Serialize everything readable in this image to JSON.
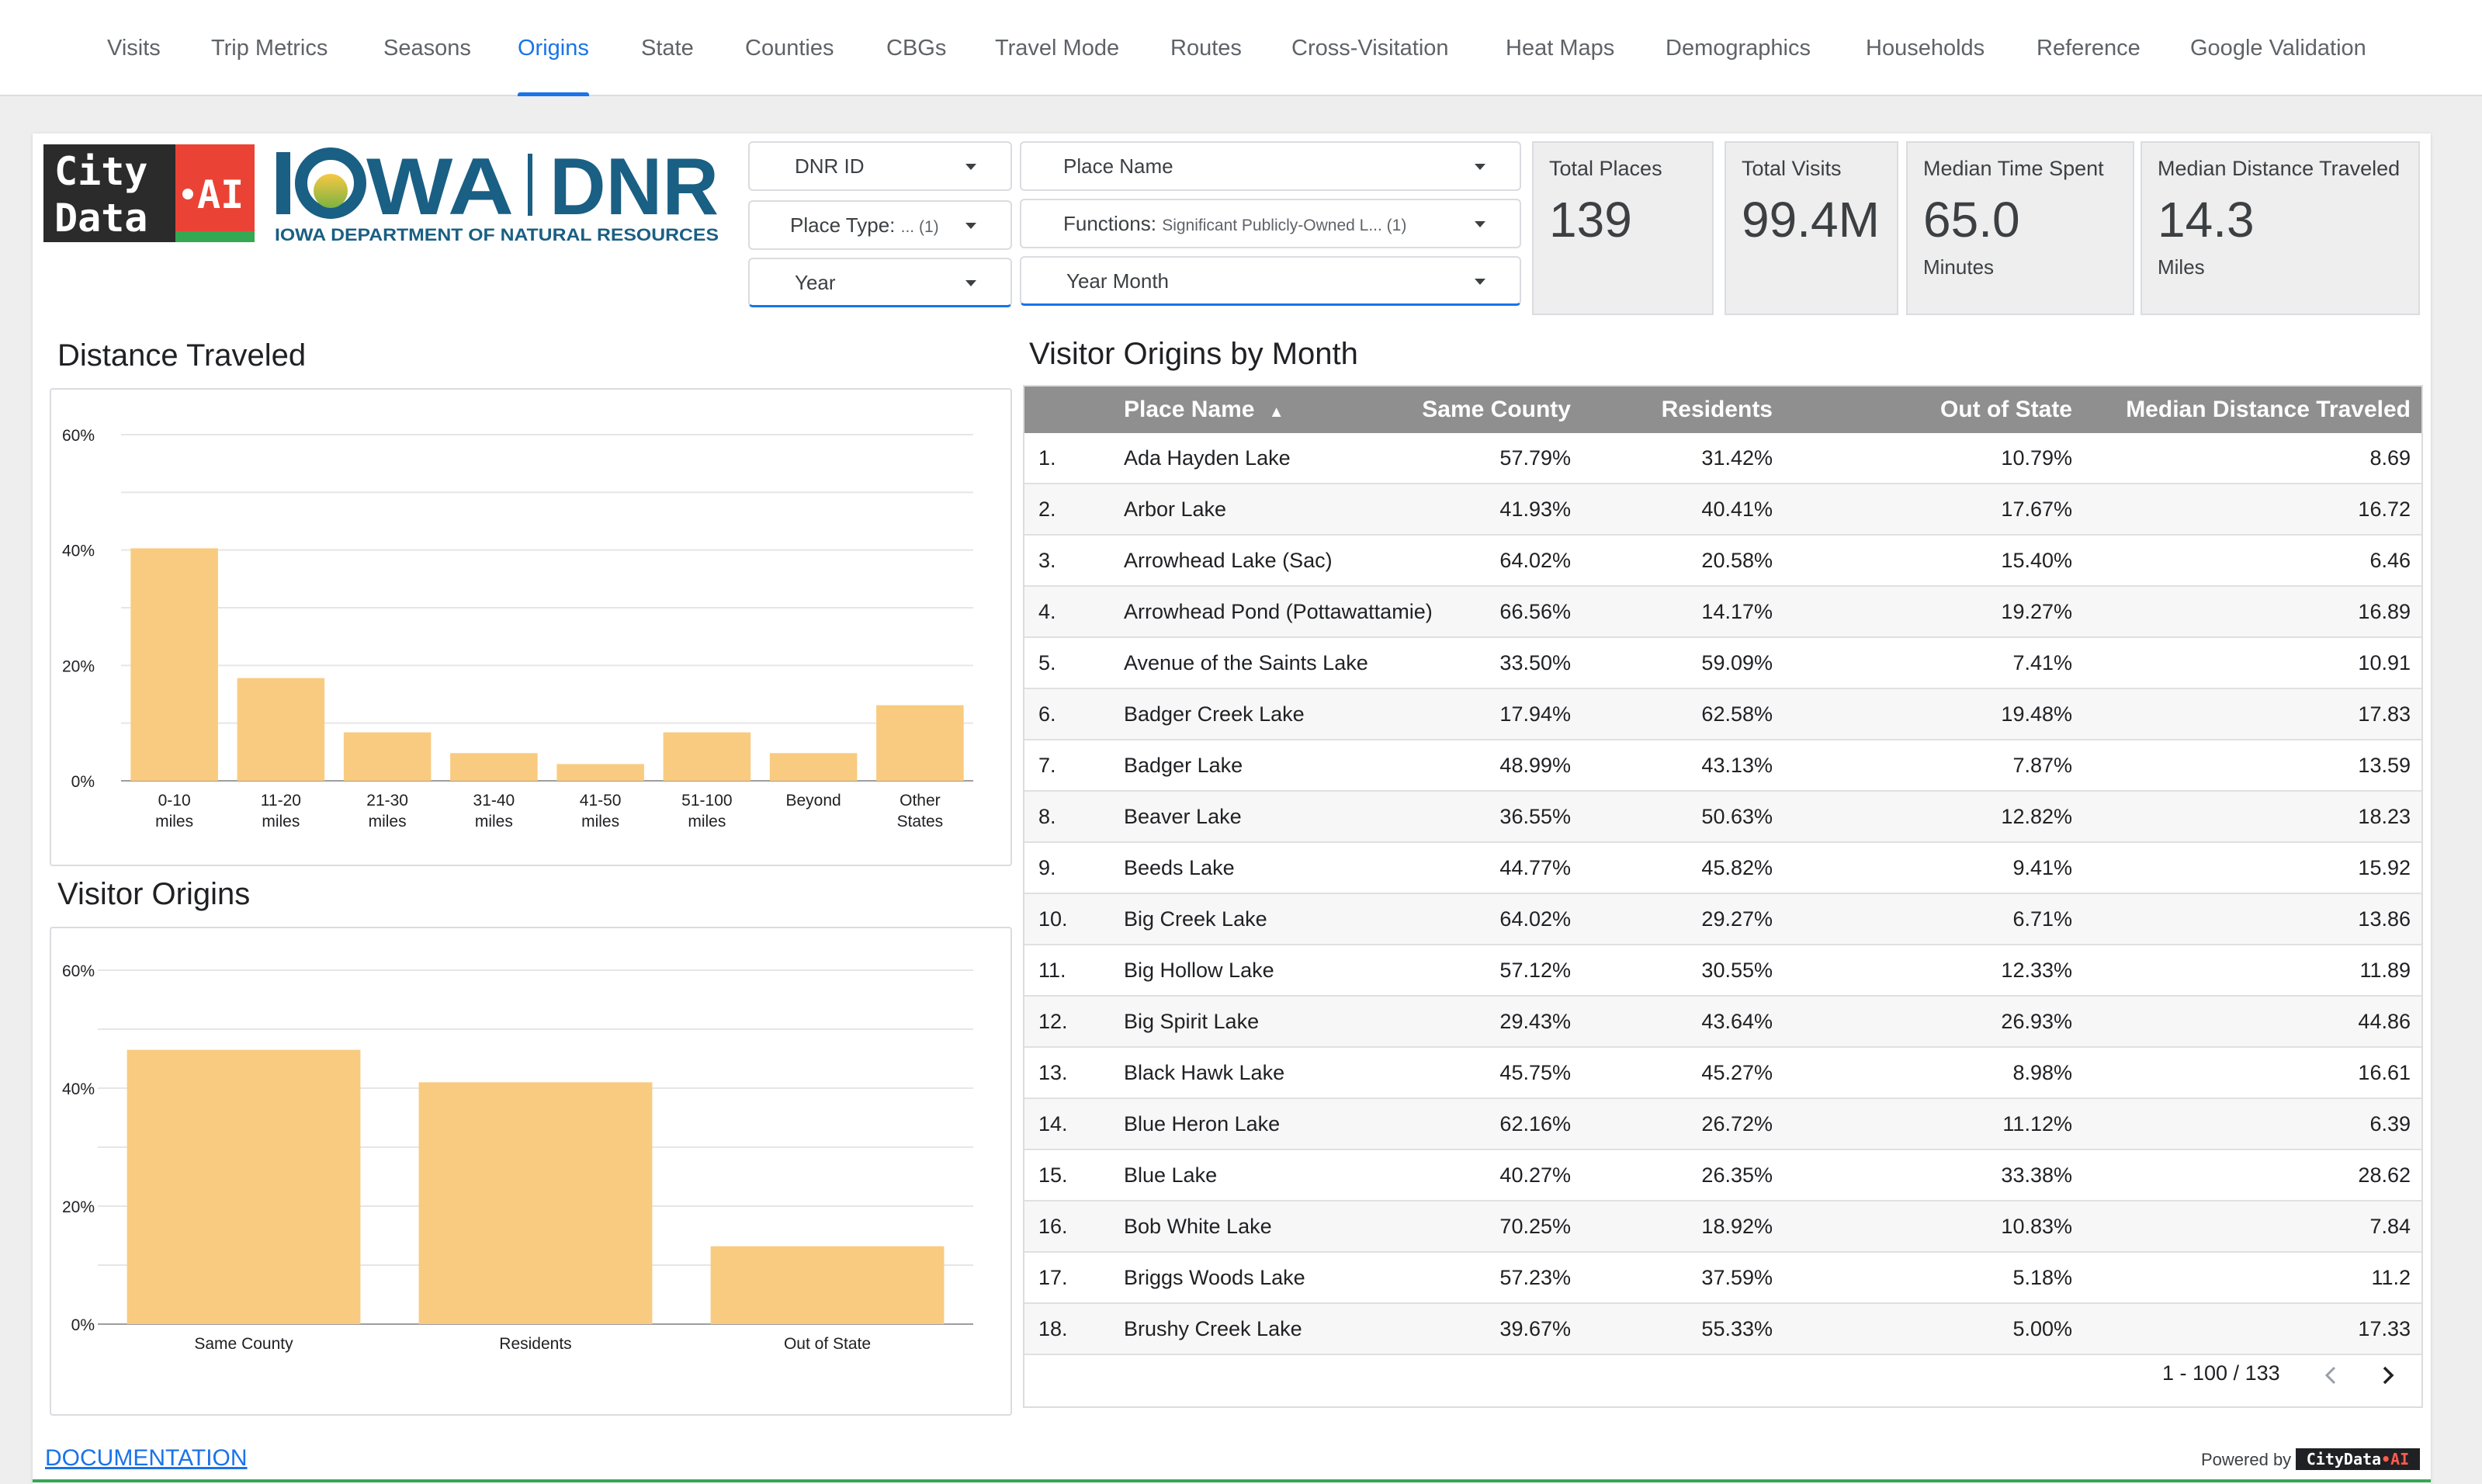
{
  "nav": {
    "tabs": [
      {
        "label": "Visits",
        "active": false
      },
      {
        "label": "Trip Metrics",
        "active": false
      },
      {
        "label": "Seasons",
        "active": false
      },
      {
        "label": "Origins",
        "active": true
      },
      {
        "label": "State",
        "active": false
      },
      {
        "label": "Counties",
        "active": false
      },
      {
        "label": "CBGs",
        "active": false
      },
      {
        "label": "Travel Mode",
        "active": false
      },
      {
        "label": "Routes",
        "active": false
      },
      {
        "label": "Cross-Visitation",
        "active": false
      },
      {
        "label": "Heat Maps",
        "active": false
      },
      {
        "label": "Demographics",
        "active": false
      },
      {
        "label": "Households",
        "active": false
      },
      {
        "label": "Reference",
        "active": false
      },
      {
        "label": "Google Validation",
        "active": false
      }
    ],
    "active_color": "#1a73e8"
  },
  "logos": {
    "citydata_line1": "City",
    "citydata_line2": "Data",
    "citydata_ai": "AI",
    "dnr_left": "IOWA",
    "dnr_right": "DNR",
    "dnr_sub": "IOWA DEPARTMENT OF NATURAL RESOURCES"
  },
  "filters": {
    "dnr_id": "DNR ID",
    "place_name": "Place Name",
    "place_type_label": "Place Type:",
    "place_type_value": "... (1)",
    "functions_label": "Functions:",
    "functions_value": "Significant Publicly-Owned L...  (1)",
    "year": "Year",
    "year_month": "Year Month"
  },
  "kpis": [
    {
      "label": "Total Places",
      "value": "139",
      "unit": ""
    },
    {
      "label": "Total Visits",
      "value": "99.4M",
      "unit": ""
    },
    {
      "label": "Median Time Spent",
      "value": "65.0",
      "unit": "Minutes"
    },
    {
      "label": "Median Distance Traveled",
      "value": "14.3",
      "unit": "Miles"
    }
  ],
  "chart_data": [
    {
      "type": "bar",
      "title": "Distance Traveled",
      "categories": [
        "0-10 miles",
        "11-20 miles",
        "21-30 miles",
        "31-40 miles",
        "41-50 miles",
        "51-100 miles",
        "Beyond",
        "Other States"
      ],
      "values": [
        40.3,
        17.8,
        8.4,
        4.8,
        2.9,
        8.4,
        4.8,
        13.1
      ],
      "yticks": [
        "0%",
        "20%",
        "40%",
        "60%"
      ],
      "ylim": [
        0,
        60
      ],
      "bar_color": "#f9cb80",
      "grid": true
    },
    {
      "type": "bar",
      "title": "Visitor Origins",
      "categories": [
        "Same County",
        "Residents",
        "Out of State"
      ],
      "values": [
        46.5,
        41.0,
        13.2
      ],
      "yticks": [
        "0%",
        "20%",
        "40%",
        "60%"
      ],
      "ylim": [
        0,
        60
      ],
      "bar_color": "#f9cb80",
      "grid": true
    }
  ],
  "table": {
    "title": "Visitor Origins by Month",
    "columns": [
      "Place Name",
      "Same County",
      "Residents",
      "Out of State",
      "Median Distance Traveled"
    ],
    "sort_indicator": "▲",
    "rows": [
      {
        "idx": "1.",
        "name": "Ada Hayden Lake",
        "same": "57.79%",
        "res": "31.42%",
        "oos": "10.79%",
        "mdt": "8.69"
      },
      {
        "idx": "2.",
        "name": "Arbor Lake",
        "same": "41.93%",
        "res": "40.41%",
        "oos": "17.67%",
        "mdt": "16.72"
      },
      {
        "idx": "3.",
        "name": "Arrowhead Lake (Sac)",
        "same": "64.02%",
        "res": "20.58%",
        "oos": "15.40%",
        "mdt": "6.46"
      },
      {
        "idx": "4.",
        "name": "Arrowhead Pond (Pottawattamie)",
        "same": "66.56%",
        "res": "14.17%",
        "oos": "19.27%",
        "mdt": "16.89"
      },
      {
        "idx": "5.",
        "name": "Avenue of the Saints Lake",
        "same": "33.50%",
        "res": "59.09%",
        "oos": "7.41%",
        "mdt": "10.91"
      },
      {
        "idx": "6.",
        "name": "Badger Creek Lake",
        "same": "17.94%",
        "res": "62.58%",
        "oos": "19.48%",
        "mdt": "17.83"
      },
      {
        "idx": "7.",
        "name": "Badger Lake",
        "same": "48.99%",
        "res": "43.13%",
        "oos": "7.87%",
        "mdt": "13.59"
      },
      {
        "idx": "8.",
        "name": "Beaver Lake",
        "same": "36.55%",
        "res": "50.63%",
        "oos": "12.82%",
        "mdt": "18.23"
      },
      {
        "idx": "9.",
        "name": "Beeds Lake",
        "same": "44.77%",
        "res": "45.82%",
        "oos": "9.41%",
        "mdt": "15.92"
      },
      {
        "idx": "10.",
        "name": "Big Creek Lake",
        "same": "64.02%",
        "res": "29.27%",
        "oos": "6.71%",
        "mdt": "13.86"
      },
      {
        "idx": "11.",
        "name": "Big Hollow Lake",
        "same": "57.12%",
        "res": "30.55%",
        "oos": "12.33%",
        "mdt": "11.89"
      },
      {
        "idx": "12.",
        "name": "Big Spirit Lake",
        "same": "29.43%",
        "res": "43.64%",
        "oos": "26.93%",
        "mdt": "44.86"
      },
      {
        "idx": "13.",
        "name": "Black Hawk Lake",
        "same": "45.75%",
        "res": "45.27%",
        "oos": "8.98%",
        "mdt": "16.61"
      },
      {
        "idx": "14.",
        "name": "Blue Heron Lake",
        "same": "62.16%",
        "res": "26.72%",
        "oos": "11.12%",
        "mdt": "6.39"
      },
      {
        "idx": "15.",
        "name": "Blue Lake",
        "same": "40.27%",
        "res": "26.35%",
        "oos": "33.38%",
        "mdt": "28.62"
      },
      {
        "idx": "16.",
        "name": "Bob White Lake",
        "same": "70.25%",
        "res": "18.92%",
        "oos": "10.83%",
        "mdt": "7.84"
      },
      {
        "idx": "17.",
        "name": "Briggs Woods Lake",
        "same": "57.23%",
        "res": "37.59%",
        "oos": "5.18%",
        "mdt": "11.2"
      },
      {
        "idx": "18.",
        "name": "Brushy Creek Lake",
        "same": "39.67%",
        "res": "55.33%",
        "oos": "5.00%",
        "mdt": "17.33"
      }
    ],
    "pagination": "1 - 100 / 133"
  },
  "footer": {
    "documentation": "DOCUMENTATION",
    "powered_by": "Powered by",
    "badge_left": "CityData",
    "badge_dot": "•",
    "badge_ai": "AI"
  }
}
